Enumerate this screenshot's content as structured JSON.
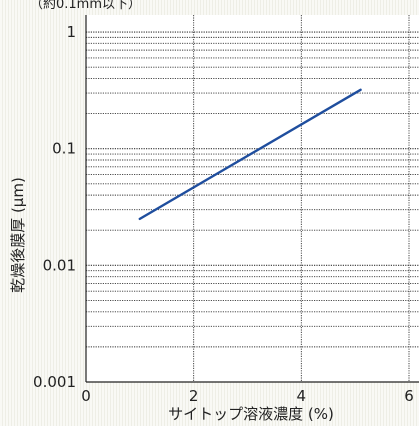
{
  "chart_data": {
    "type": "line",
    "top_text": "（約0.1mm以下）",
    "xlabel": "サイトップ溶液濃度 (%)",
    "ylabel": "乾燥後膜厚 (μm)",
    "x_scale": "linear",
    "y_scale": "log",
    "xlim": [
      0,
      6
    ],
    "ylim": [
      0.001,
      1.4
    ],
    "x_ticks": [
      0,
      2,
      4,
      6
    ],
    "x_tick_labels": [
      "0",
      "2",
      "4",
      "6"
    ],
    "y_ticks": [
      0.001,
      0.01,
      0.1,
      1
    ],
    "y_tick_labels": [
      "0.001",
      "0.01",
      "0.1",
      "1"
    ],
    "grid": true,
    "series": [
      {
        "color": "#1f4e9e",
        "points": [
          {
            "x": 1.0,
            "y": 0.025
          },
          {
            "x": 5.1,
            "y": 0.32
          }
        ]
      }
    ]
  }
}
